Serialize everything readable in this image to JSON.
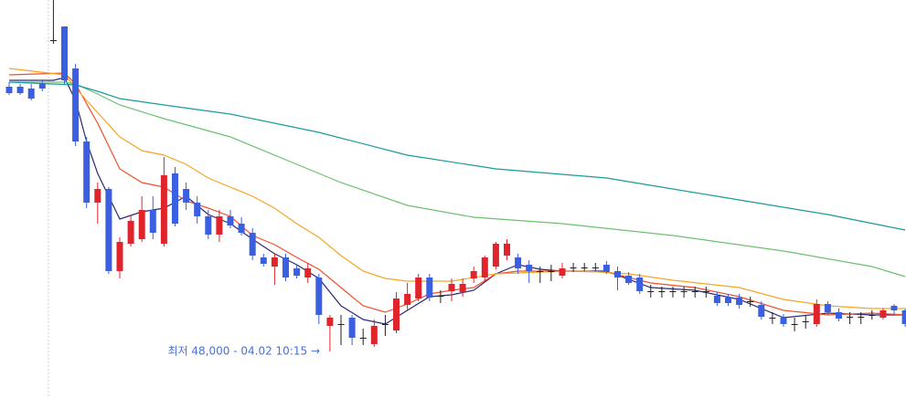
{
  "chart_data": {
    "type": "candlestick",
    "annotation": "최저 48,000 - 04.02 10:15 →",
    "annotation_color": "#4a6fd8",
    "ylim": [
      46980,
      55700
    ],
    "up_color": "#e0242b",
    "down_color": "#3a5fe0",
    "flat_color": "#222222",
    "open": [
      53800,
      53800,
      53760,
      53860,
      54820,
      55120,
      54200,
      52600,
      51260,
      51560,
      49760,
      50360,
      50460,
      51100,
      50360,
      51900,
      51560,
      51260,
      50960,
      50560,
      50960,
      50800,
      50600,
      50060,
      49860,
      50060,
      49820,
      49620,
      49620,
      48560,
      48600,
      48740,
      48300,
      48160,
      48600,
      48460,
      49020,
      49160,
      49620,
      49220,
      49320,
      49300,
      49600,
      49620,
      49860,
      50100,
      50060,
      49900,
      49760,
      49760,
      49660,
      49840,
      49840,
      49840,
      49900,
      49760,
      49660,
      49620,
      49320,
      49320,
      49320,
      49320,
      49320,
      49320,
      49220,
      49180,
      49180,
      49100,
      49020,
      48740,
      48740,
      48600,
      48660,
      48600,
      49040,
      48860,
      48760,
      48760,
      48800,
      48740,
      49000,
      48900
    ],
    "high": [
      53900,
      53860,
      53860,
      53940,
      55700,
      55120,
      54300,
      52700,
      51700,
      51600,
      50500,
      51000,
      51400,
      51400,
      52260,
      52040,
      51700,
      51400,
      51100,
      51100,
      51100,
      50940,
      50700,
      50140,
      50140,
      50140,
      49900,
      49940,
      49700,
      48800,
      48800,
      48800,
      48500,
      48700,
      48800,
      49300,
      49500,
      49700,
      49700,
      49340,
      49600,
      49600,
      49860,
      50100,
      50400,
      50460,
      50140,
      50000,
      49860,
      49900,
      49940,
      49940,
      49940,
      49940,
      49980,
      49860,
      49740,
      49700,
      49460,
      49420,
      49420,
      49420,
      49420,
      49420,
      49300,
      49260,
      49260,
      49200,
      49100,
      48860,
      48820,
      48740,
      48800,
      49140,
      49100,
      48940,
      48860,
      48860,
      48900,
      48940,
      49040,
      48940
    ],
    "low": [
      53620,
      53620,
      53500,
      53700,
      54740,
      53860,
      52500,
      51140,
      50800,
      49700,
      49600,
      50300,
      50400,
      50460,
      50300,
      50740,
      51100,
      50800,
      50460,
      50400,
      50700,
      50540,
      50000,
      49860,
      49460,
      49540,
      49600,
      49500,
      48600,
      48000,
      48140,
      48140,
      48140,
      48100,
      48340,
      48400,
      48900,
      49100,
      49100,
      49060,
      49100,
      49200,
      49500,
      49540,
      49800,
      50000,
      49700,
      49500,
      49500,
      49540,
      49600,
      49740,
      49760,
      49760,
      49700,
      49340,
      49460,
      49260,
      49180,
      49180,
      49180,
      49180,
      49180,
      49180,
      49000,
      49000,
      48940,
      48980,
      48700,
      48600,
      48540,
      48440,
      48500,
      48540,
      48800,
      48660,
      48600,
      48600,
      48700,
      48700,
      48800,
      48540
    ],
    "close": [
      53660,
      53660,
      53540,
      53760,
      54820,
      53940,
      52600,
      51260,
      51560,
      49760,
      50400,
      50860,
      51100,
      50600,
      51860,
      50800,
      51260,
      50960,
      50560,
      50960,
      50760,
      50600,
      50100,
      49920,
      50060,
      49620,
      49660,
      49820,
      48800,
      48740,
      48600,
      48300,
      48300,
      48560,
      48600,
      49160,
      49260,
      49620,
      49180,
      49220,
      49480,
      49480,
      49760,
      50060,
      50360,
      50360,
      49820,
      49760,
      49760,
      49760,
      49820,
      49840,
      49840,
      49840,
      49760,
      49620,
      49500,
      49320,
      49320,
      49320,
      49320,
      49320,
      49320,
      49320,
      49060,
      49060,
      49020,
      49100,
      48760,
      48740,
      48600,
      48600,
      48660,
      49040,
      48860,
      48720,
      48760,
      48760,
      48800,
      48900,
      48900,
      48600
    ],
    "series": [
      {
        "color": "#2a2a7a",
        "x": [
          0,
          4,
          5,
          6,
          7,
          8,
          9,
          10,
          12,
          14,
          16,
          18,
          20,
          22,
          24,
          26,
          28,
          30,
          32,
          34,
          36,
          38,
          40,
          42,
          44,
          46,
          48,
          50,
          54,
          58,
          62,
          66,
          70,
          74,
          78,
          81
        ],
        "values": [
          53940,
          53940,
          54000,
          53500,
          52600,
          51900,
          51400,
          50900,
          51060,
          51140,
          51400,
          51000,
          50800,
          50460,
          50140,
          49900,
          49600,
          49000,
          48700,
          48600,
          48900,
          49200,
          49240,
          49340,
          49700,
          49900,
          49800,
          49760,
          49760,
          49400,
          49340,
          49140,
          48740,
          48840,
          48800,
          48800
        ]
      },
      {
        "color": "#f0502a",
        "x": [
          0,
          5,
          6,
          8,
          10,
          12,
          14,
          16,
          18,
          20,
          22,
          24,
          26,
          28,
          30,
          32,
          34,
          36,
          38,
          40,
          42,
          44,
          46,
          50,
          54,
          58,
          62,
          66,
          70,
          74,
          78,
          81
        ],
        "values": [
          54060,
          54100,
          53860,
          53000,
          52000,
          51700,
          51600,
          51300,
          51140,
          50960,
          50540,
          50340,
          50060,
          49800,
          49400,
          49000,
          48860,
          49040,
          49260,
          49340,
          49400,
          49700,
          49760,
          49760,
          49740,
          49500,
          49400,
          49200,
          48900,
          48800,
          48840,
          48800
        ]
      },
      {
        "color": "#f5a623",
        "x": [
          0,
          5,
          7,
          10,
          12,
          14,
          16,
          18,
          20,
          22,
          24,
          26,
          28,
          30,
          32,
          34,
          36,
          40,
          44,
          48,
          52,
          56,
          60,
          66,
          70,
          74,
          78,
          81
        ],
        "values": [
          54200,
          54060,
          53500,
          52700,
          52400,
          52300,
          52100,
          51800,
          51600,
          51400,
          51140,
          50800,
          50500,
          50100,
          49760,
          49600,
          49540,
          49540,
          49700,
          49740,
          49760,
          49700,
          49560,
          49400,
          49140,
          49000,
          48940,
          48940
        ]
      },
      {
        "color": "#6cc070",
        "x": [
          0,
          5,
          6,
          8,
          10,
          14,
          20,
          26,
          30,
          36,
          42,
          50,
          60,
          70,
          78,
          81
        ],
        "values": [
          53900,
          53900,
          53860,
          53640,
          53400,
          53100,
          52700,
          52100,
          51700,
          51200,
          50940,
          50800,
          50540,
          50200,
          49860,
          49640
        ]
      },
      {
        "color": "#1a9a9a",
        "x": [
          0,
          6,
          8,
          10,
          14,
          20,
          28,
          36,
          44,
          54,
          64,
          74,
          81
        ],
        "values": [
          53900,
          53840,
          53700,
          53540,
          53400,
          53200,
          52800,
          52300,
          52000,
          51800,
          51400,
          51000,
          50660
        ]
      }
    ]
  }
}
